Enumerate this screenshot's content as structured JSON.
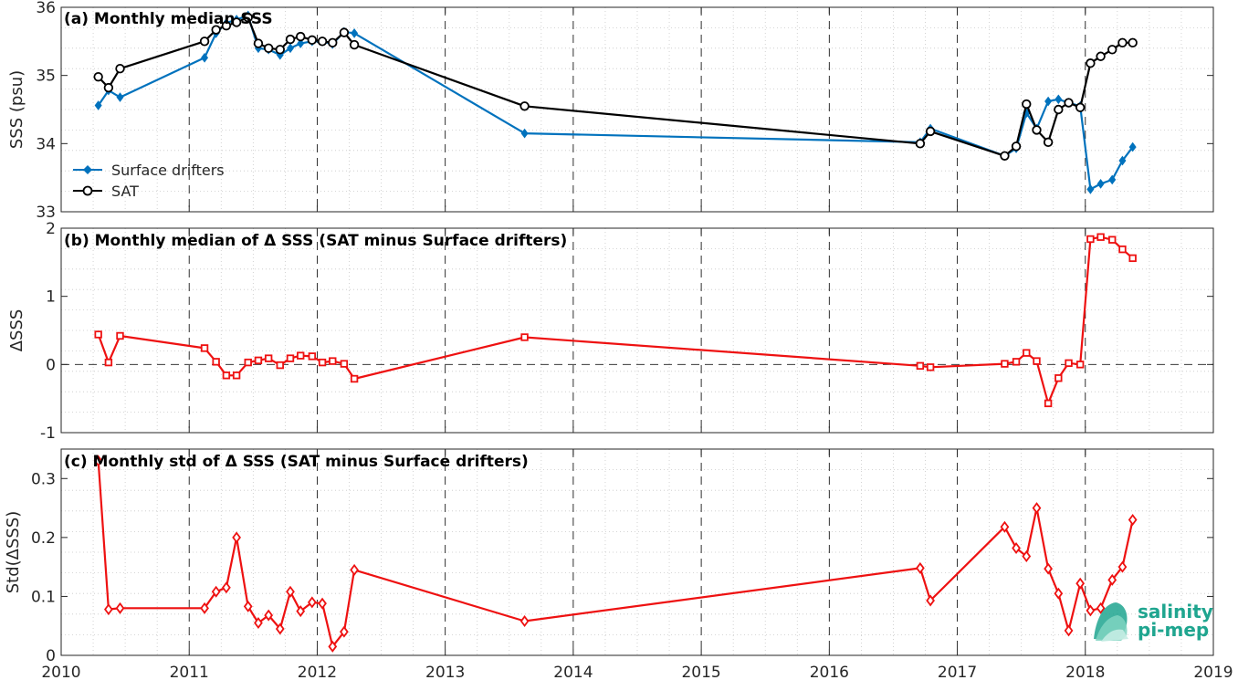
{
  "colors": {
    "drifters": "#0072BD",
    "sat": "#000000",
    "delta": "#EE1111",
    "logo": "#1fa58f"
  },
  "logo": {
    "line1": "salinity",
    "line2": "pi-mep",
    "icon": "wave-logo-icon"
  },
  "chart_data": [
    {
      "type": "line",
      "panel": "a",
      "title": "(a) Monthly median SSS",
      "ylabel": "SSS (psu)",
      "xlim": [
        2010,
        2019
      ],
      "ylim": [
        33,
        36
      ],
      "yticks": [
        33,
        34,
        35,
        36
      ],
      "grid": true,
      "legend_position": "bottom-left",
      "series": [
        {
          "name": "Surface drifters",
          "marker": "diamond",
          "x": [
            2010.29,
            2010.37,
            2010.46,
            2011.12,
            2011.21,
            2011.29,
            2011.37,
            2011.46,
            2011.54,
            2011.62,
            2011.71,
            2011.79,
            2011.87,
            2011.96,
            2012.04,
            2012.12,
            2012.21,
            2012.29,
            2013.62,
            2016.71,
            2016.79,
            2017.37,
            2017.46,
            2017.54,
            2017.62,
            2017.71,
            2017.79,
            2017.87,
            2017.96,
            2018.04,
            2018.12,
            2018.21,
            2018.29,
            2018.37
          ],
          "y": [
            34.56,
            34.78,
            34.68,
            35.26,
            35.62,
            35.77,
            35.82,
            35.88,
            35.4,
            35.38,
            35.3,
            35.4,
            35.47,
            35.5,
            35.5,
            35.46,
            35.64,
            35.62,
            34.15,
            34.02,
            34.22,
            33.82,
            33.93,
            34.45,
            34.22,
            34.62,
            34.65,
            34.6,
            34.55,
            33.33,
            33.41,
            33.47,
            33.75,
            33.95
          ]
        },
        {
          "name": "SAT",
          "marker": "circle",
          "x": [
            2010.29,
            2010.37,
            2010.46,
            2011.12,
            2011.21,
            2011.29,
            2011.37,
            2011.46,
            2011.54,
            2011.62,
            2011.71,
            2011.79,
            2011.87,
            2011.96,
            2012.04,
            2012.12,
            2012.21,
            2012.29,
            2013.62,
            2016.71,
            2016.79,
            2017.37,
            2017.46,
            2017.54,
            2017.62,
            2017.71,
            2017.79,
            2017.87,
            2017.96,
            2018.04,
            2018.12,
            2018.21,
            2018.29,
            2018.37
          ],
          "y": [
            34.98,
            34.82,
            35.1,
            35.5,
            35.67,
            35.73,
            35.78,
            35.85,
            35.47,
            35.4,
            35.38,
            35.53,
            35.57,
            35.52,
            35.5,
            35.48,
            35.63,
            35.45,
            34.55,
            34.0,
            34.18,
            33.82,
            33.96,
            34.58,
            34.2,
            34.02,
            34.5,
            34.6,
            34.53,
            35.18,
            35.28,
            35.38,
            35.48,
            35.48
          ]
        }
      ]
    },
    {
      "type": "line",
      "panel": "b",
      "title": "(b) Monthly median of Δ SSS (SAT minus Surface drifters)",
      "ylabel": "ΔSSS",
      "xlim": [
        2010,
        2019
      ],
      "ylim": [
        -1,
        2
      ],
      "yticks": [
        -1,
        0,
        1,
        2
      ],
      "grid": true,
      "zero_line": true,
      "series": [
        {
          "marker": "square",
          "x": [
            2010.29,
            2010.37,
            2010.46,
            2011.12,
            2011.21,
            2011.29,
            2011.37,
            2011.46,
            2011.54,
            2011.62,
            2011.71,
            2011.79,
            2011.87,
            2011.96,
            2012.04,
            2012.12,
            2012.21,
            2012.29,
            2013.62,
            2016.71,
            2016.79,
            2017.37,
            2017.46,
            2017.54,
            2017.62,
            2017.71,
            2017.79,
            2017.87,
            2017.96,
            2018.04,
            2018.12,
            2018.21,
            2018.29,
            2018.37
          ],
          "y": [
            0.44,
            0.03,
            0.42,
            0.24,
            0.04,
            -0.16,
            -0.16,
            0.03,
            0.06,
            0.09,
            -0.01,
            0.09,
            0.13,
            0.12,
            0.03,
            0.05,
            0.01,
            -0.21,
            0.4,
            -0.02,
            -0.04,
            0.01,
            0.04,
            0.17,
            0.05,
            -0.57,
            -0.2,
            0.02,
            0.0,
            1.84,
            1.87,
            1.83,
            1.69,
            1.56
          ]
        }
      ]
    },
    {
      "type": "line",
      "panel": "c",
      "title": "(c) Monthly std of Δ SSS (SAT minus Surface drifters)",
      "ylabel": "Std(ΔSSS)",
      "xlim": [
        2010,
        2019
      ],
      "ylim": [
        0,
        0.35
      ],
      "yticks": [
        0,
        0.1,
        0.2,
        0.3
      ],
      "xticks": [
        2010,
        2011,
        2012,
        2013,
        2014,
        2015,
        2016,
        2017,
        2018,
        2019
      ],
      "grid": true,
      "series": [
        {
          "marker": "diamond",
          "x": [
            2010.29,
            2010.37,
            2010.46,
            2011.12,
            2011.21,
            2011.29,
            2011.37,
            2011.46,
            2011.54,
            2011.62,
            2011.71,
            2011.79,
            2011.87,
            2011.96,
            2012.04,
            2012.12,
            2012.21,
            2012.29,
            2013.62,
            2016.71,
            2016.79,
            2017.37,
            2017.46,
            2017.54,
            2017.62,
            2017.71,
            2017.79,
            2017.87,
            2017.96,
            2018.04,
            2018.12,
            2018.21,
            2018.29,
            2018.37
          ],
          "y": [
            0.33,
            0.078,
            0.08,
            0.08,
            0.108,
            0.115,
            0.2,
            0.083,
            0.055,
            0.068,
            0.045,
            0.108,
            0.075,
            0.09,
            0.088,
            0.015,
            0.04,
            0.145,
            0.058,
            0.148,
            0.093,
            0.218,
            0.182,
            0.168,
            0.25,
            0.147,
            0.105,
            0.042,
            0.122,
            0.076,
            0.08,
            0.128,
            0.15,
            0.23
          ]
        }
      ]
    }
  ]
}
